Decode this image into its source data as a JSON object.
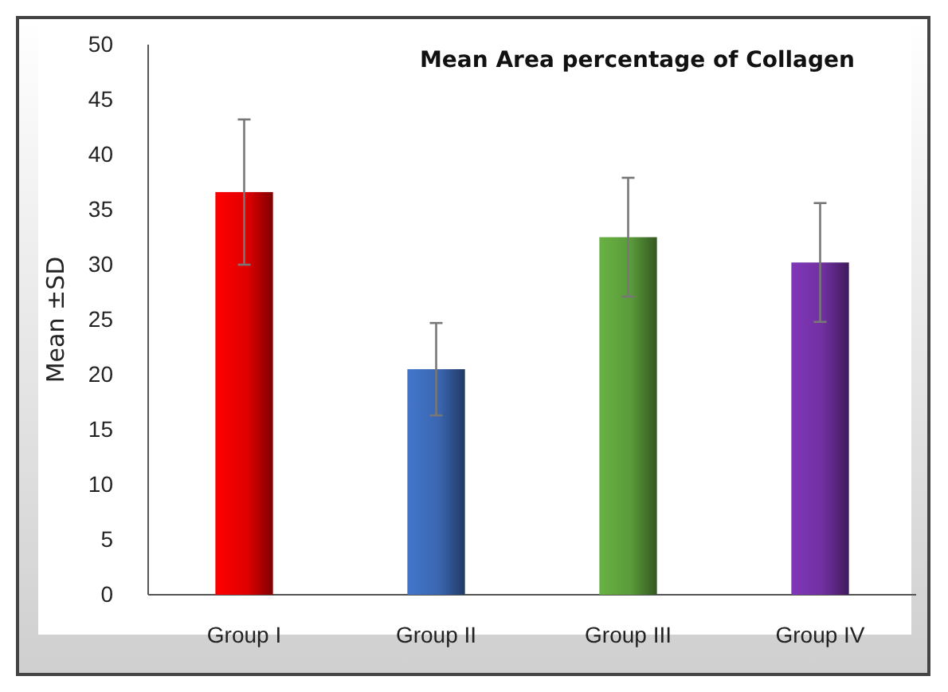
{
  "chart_data": {
    "type": "bar",
    "title": "Mean Area percentage of Collagen",
    "ylabel": "Mean ±SD",
    "categories": [
      "Group I",
      "Group II",
      "Group III",
      "Group IV"
    ],
    "values": [
      36.6,
      20.5,
      32.5,
      30.2
    ],
    "errors": [
      6.6,
      4.2,
      5.4,
      5.4
    ],
    "colors": [
      "#e00000",
      "#3a66b0",
      "#5a9a3a",
      "#7030a0"
    ],
    "ylim": [
      0,
      50
    ],
    "yticks": [
      0,
      5,
      10,
      15,
      20,
      25,
      30,
      35,
      40,
      45,
      50
    ],
    "grid": false,
    "legend": false
  }
}
